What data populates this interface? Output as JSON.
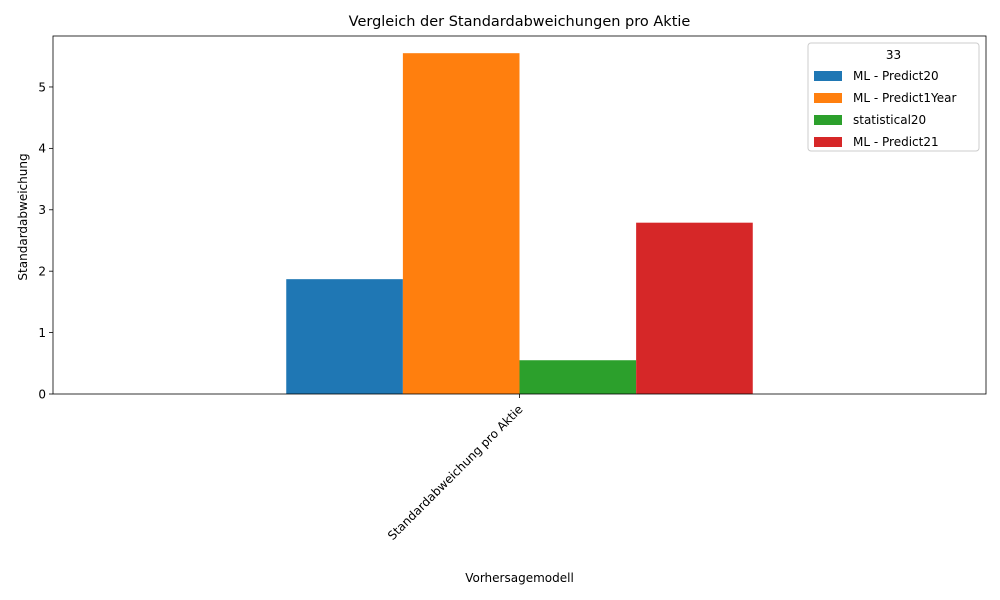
{
  "chart_data": {
    "type": "bar",
    "title": "Vergleich der Standardabweichungen pro Aktie",
    "xlabel": "Vorhersagemodell",
    "ylabel": "Standardabweichung",
    "categories": [
      "Standardabweichung pro Aktie"
    ],
    "series": [
      {
        "name": "ML - Predict20",
        "values": [
          1.87
        ],
        "color": "#1f77b4"
      },
      {
        "name": "ML - Predict1Year",
        "values": [
          5.55
        ],
        "color": "#ff7f0e"
      },
      {
        "name": "statistical20",
        "values": [
          0.55
        ],
        "color": "#2ca02c"
      },
      {
        "name": "ML - Predict21",
        "values": [
          2.79
        ],
        "color": "#d62728"
      }
    ],
    "ylim": [
      0,
      5.83
    ],
    "yticks": [
      0,
      1,
      2,
      3,
      4,
      5
    ],
    "legend": {
      "title": "33",
      "position": "top-right"
    },
    "grid": false
  }
}
